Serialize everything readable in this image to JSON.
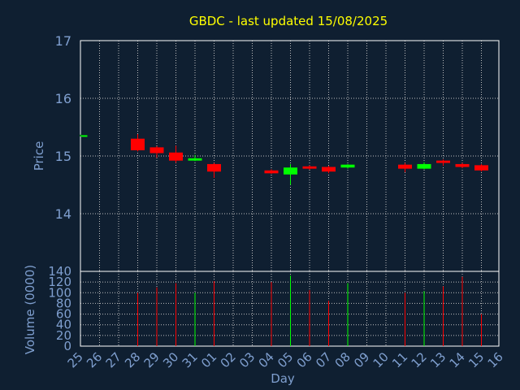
{
  "chart_data": {
    "type": "candlestick",
    "title": "GBDC - last updated 15/08/2025",
    "xlabel": "Day",
    "price_panel": {
      "ylabel": "Price",
      "ylim": [
        14.0,
        17.0
      ],
      "yticks": [
        "14",
        "15",
        "16",
        "17"
      ],
      "grid": true
    },
    "volume_panel": {
      "ylabel": "Volume (0000)",
      "ylim": [
        0,
        140
      ],
      "yticks": [
        "0",
        "20",
        "40",
        "60",
        "80",
        "100",
        "120",
        "140"
      ],
      "grid": true
    },
    "x_tick_labels": [
      "25",
      "26",
      "27",
      "28",
      "29",
      "30",
      "31",
      "01",
      "02",
      "03",
      "04",
      "05",
      "06",
      "07",
      "08",
      "09",
      "10",
      "11",
      "12",
      "13",
      "14",
      "15",
      "16"
    ],
    "candles": [
      {
        "day": "25",
        "open": 15.35,
        "close": 15.36,
        "high": 15.37,
        "low": 15.34,
        "volume": 0
      },
      {
        "day": "28",
        "open": 15.3,
        "close": 15.1,
        "high": 15.38,
        "low": 15.08,
        "volume": 100
      },
      {
        "day": "29",
        "open": 15.15,
        "close": 15.05,
        "high": 15.17,
        "low": 14.97,
        "volume": 110
      },
      {
        "day": "30",
        "open": 15.06,
        "close": 14.92,
        "high": 15.18,
        "low": 14.88,
        "volume": 118
      },
      {
        "day": "31",
        "open": 14.92,
        "close": 14.96,
        "high": 15.02,
        "low": 14.91,
        "volume": 100
      },
      {
        "day": "01",
        "open": 14.86,
        "close": 14.73,
        "high": 14.88,
        "low": 14.62,
        "volume": 122
      },
      {
        "day": "04",
        "open": 14.75,
        "close": 14.7,
        "high": 14.77,
        "low": 14.69,
        "volume": 120
      },
      {
        "day": "05",
        "open": 14.68,
        "close": 14.8,
        "high": 14.86,
        "low": 14.5,
        "volume": 132
      },
      {
        "day": "06",
        "open": 14.82,
        "close": 14.78,
        "high": 14.84,
        "low": 14.76,
        "volume": 105
      },
      {
        "day": "07",
        "open": 14.81,
        "close": 14.73,
        "high": 14.83,
        "low": 14.7,
        "volume": 85
      },
      {
        "day": "08",
        "open": 14.8,
        "close": 14.85,
        "high": 14.86,
        "low": 14.78,
        "volume": 118
      },
      {
        "day": "11",
        "open": 14.85,
        "close": 14.78,
        "high": 14.88,
        "low": 14.72,
        "volume": 100
      },
      {
        "day": "12",
        "open": 14.78,
        "close": 14.86,
        "high": 14.89,
        "low": 14.77,
        "volume": 103
      },
      {
        "day": "13",
        "open": 14.92,
        "close": 14.88,
        "high": 14.94,
        "low": 14.83,
        "volume": 112
      },
      {
        "day": "14",
        "open": 14.86,
        "close": 14.81,
        "high": 14.88,
        "low": 14.79,
        "volume": 130
      },
      {
        "day": "15",
        "open": 14.84,
        "close": 14.75,
        "high": 14.86,
        "low": 14.73,
        "volume": 60
      }
    ],
    "colors": {
      "background": "#0f1f31",
      "title": "#ffff00",
      "axis_text": "#7f9fcf",
      "frame": "#ffffff",
      "grid": "#bfbfbf",
      "up": "#00ff00",
      "down": "#ff0000"
    }
  }
}
